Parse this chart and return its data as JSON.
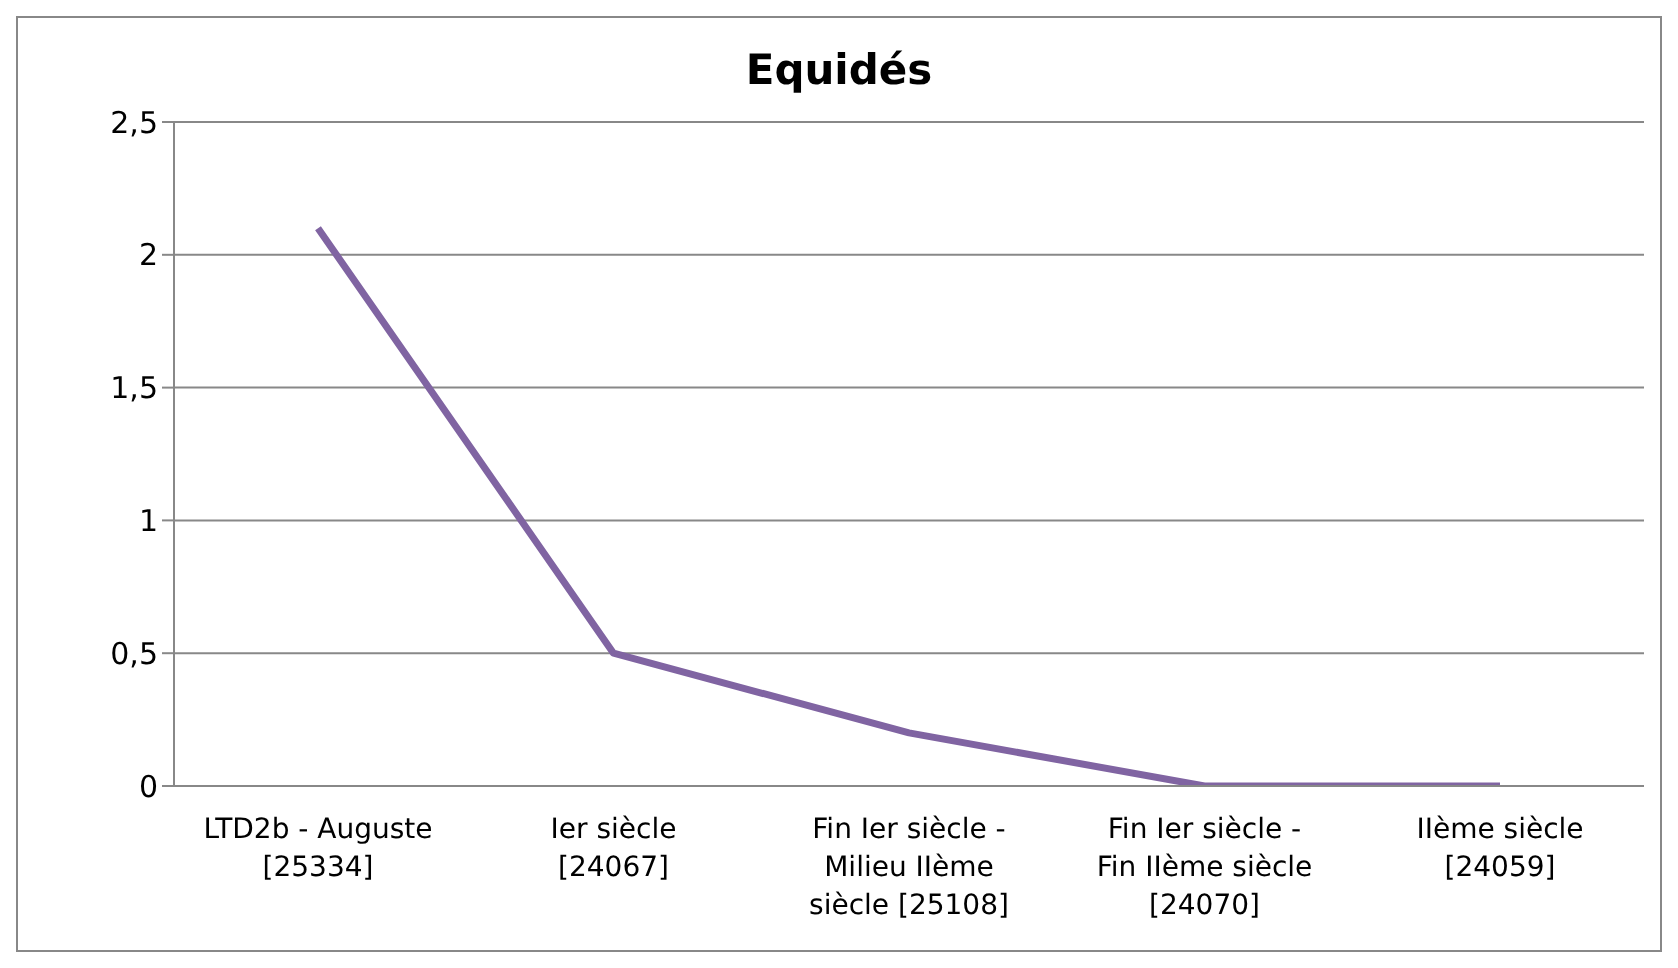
{
  "chart_data": {
    "type": "line",
    "title": "Equidés",
    "categories": [
      "LTD2b - Auguste [25334]",
      "Ier siècle [24067]",
      "Fin Ier siècle - Milieu IIème siècle [25108]",
      "Fin Ier siècle - Fin IIème siècle [24070]",
      "IIème siècle [24059]"
    ],
    "series": [
      {
        "color": "#8064a2",
        "values": [
          2.1,
          0.5,
          0.2,
          0,
          0
        ]
      }
    ],
    "ylim": [
      0,
      2.5
    ],
    "yticks": [
      0,
      {
        "value": 0.5,
        "label": "0,5"
      },
      1,
      {
        "value": 1.5,
        "label": "1,5"
      },
      2,
      {
        "value": 2.5,
        "label": "2,5"
      }
    ],
    "grid": "y",
    "legend": false,
    "marker": "none",
    "line_style": "solid"
  }
}
